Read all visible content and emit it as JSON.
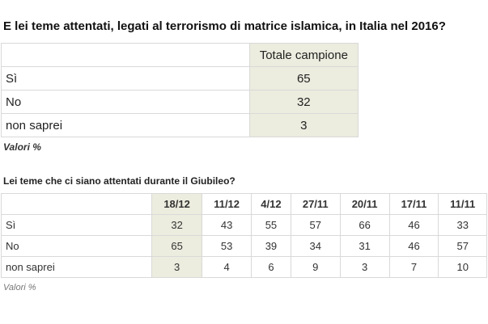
{
  "q1": {
    "title": "E lei teme attentati, legati al terrorismo di matrice islamica, in Italia nel 2016?",
    "column_header": "Totale campione",
    "rows": [
      {
        "label": "Sì",
        "value": "65"
      },
      {
        "label": "No",
        "value": "32"
      },
      {
        "label": "non saprei",
        "value": "3"
      }
    ],
    "note": "Valori %"
  },
  "q2": {
    "title": "Lei teme che ci siano attentati durante il Giubileo?",
    "columns": [
      "18/12",
      "11/12",
      "4/12",
      "27/11",
      "20/11",
      "17/11",
      "11/11"
    ],
    "rows": [
      {
        "label": "Sì",
        "values": [
          "32",
          "43",
          "55",
          "57",
          "66",
          "46",
          "33"
        ]
      },
      {
        "label": "No",
        "values": [
          "65",
          "53",
          "39",
          "34",
          "31",
          "46",
          "57"
        ]
      },
      {
        "label": "non saprei",
        "values": [
          "3",
          "4",
          "6",
          "9",
          "3",
          "7",
          "10"
        ]
      }
    ],
    "note": "Valori %"
  },
  "chart_data": [
    {
      "type": "table",
      "title": "E lei teme attentati, legati al terrorismo di matrice islamica, in Italia nel 2016?",
      "columns": [
        "Totale campione"
      ],
      "rows": [
        "Sì",
        "No",
        "non saprei"
      ],
      "values": [
        [
          65
        ],
        [
          32
        ],
        [
          3
        ]
      ],
      "note": "Valori %"
    },
    {
      "type": "table",
      "title": "Lei teme che ci siano attentati durante il Giubileo?",
      "columns": [
        "18/12",
        "11/12",
        "4/12",
        "27/11",
        "20/11",
        "17/11",
        "11/11"
      ],
      "rows": [
        "Sì",
        "No",
        "non saprei"
      ],
      "values": [
        [
          32,
          43,
          55,
          57,
          66,
          46,
          33
        ],
        [
          65,
          53,
          39,
          34,
          31,
          46,
          57
        ],
        [
          3,
          4,
          6,
          9,
          3,
          7,
          10
        ]
      ],
      "highlight_column": "18/12",
      "note": "Valori %"
    }
  ]
}
